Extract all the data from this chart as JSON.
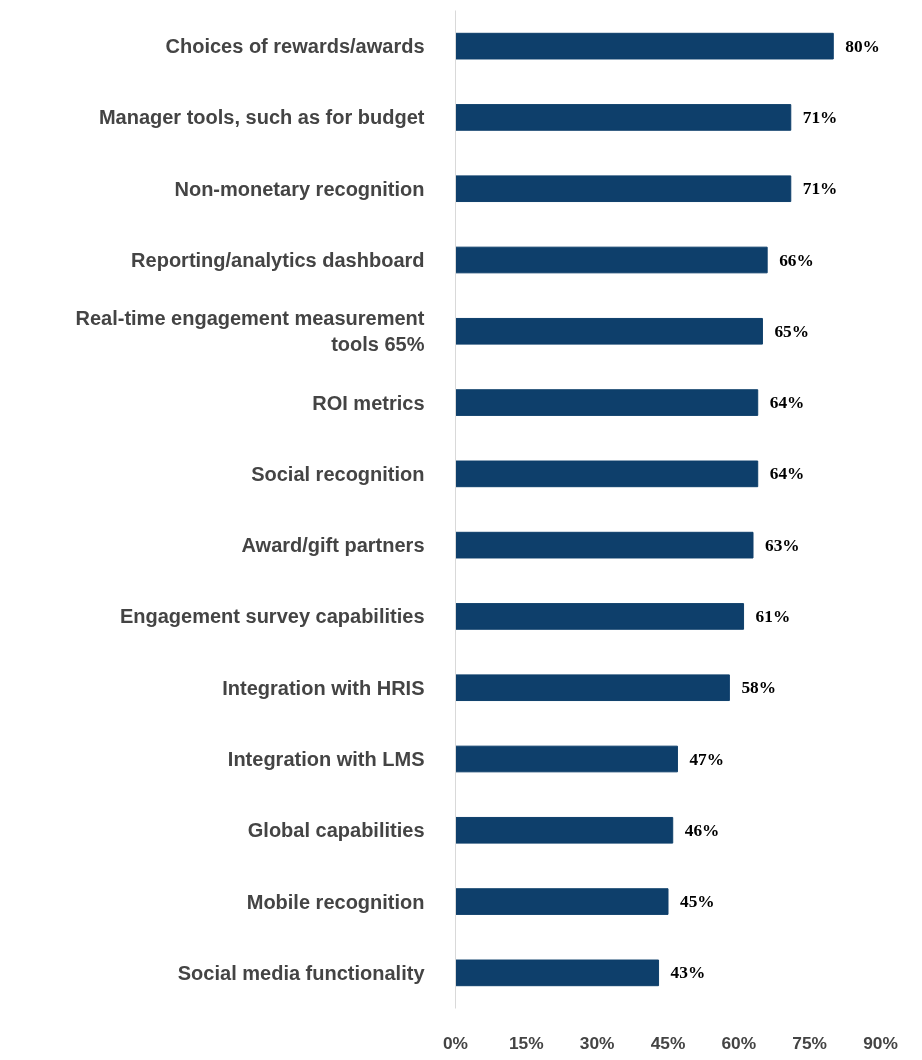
{
  "chart_data": {
    "type": "bar",
    "orientation": "horizontal",
    "categories": [
      "Choices of rewards/awards",
      "Manager tools, such as for budget",
      "Non-monetary recognition",
      "Reporting/analytics dashboard",
      "Real-time engagement measurement tools 65%",
      "ROI metrics",
      "Social recognition",
      "Award/gift partners",
      "Engagement survey capabilities",
      "Integration with HRIS",
      "Integration with LMS",
      "Global capabilities",
      "Mobile recognition",
      "Social media functionality"
    ],
    "values": [
      80,
      71,
      71,
      66,
      65,
      64,
      64,
      63,
      61,
      58,
      47,
      46,
      45,
      43
    ],
    "value_labels": [
      "80%",
      "71%",
      "71%",
      "66%",
      "65%",
      "64%",
      "64%",
      "63%",
      "61%",
      "58%",
      "47%",
      "46%",
      "45%",
      "43%"
    ],
    "color": "#0e3f6b",
    "xlim": [
      0,
      90
    ],
    "xticks": [
      {
        "value": 0,
        "label": "0%"
      },
      {
        "value": 15,
        "label": "15%"
      },
      {
        "value": 30,
        "label": "30%"
      },
      {
        "value": 45,
        "label": "45%"
      },
      {
        "value": 60,
        "label": "60%"
      },
      {
        "value": 75,
        "label": "75%"
      },
      {
        "value": 90,
        "label": "90%"
      }
    ],
    "grid": false
  }
}
